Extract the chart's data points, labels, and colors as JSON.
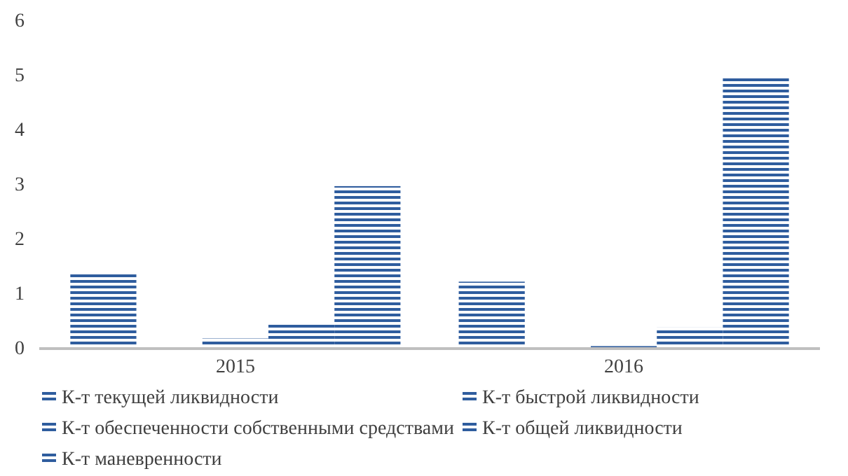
{
  "chart_data": {
    "type": "bar",
    "categories": [
      "2015",
      "2016"
    ],
    "series": [
      {
        "name": "К-т текущей ликвидности",
        "color": "#2f5d9e",
        "values": [
          1.37,
          1.2
        ]
      },
      {
        "name": "К-т быстрой ликвидности",
        "color": "#2f5d9e",
        "values": [
          null,
          null
        ]
      },
      {
        "name": "К-т обеспеченности собственными средствами",
        "color": "#2f5d9e",
        "values": [
          0.16,
          0.02
        ]
      },
      {
        "name": "К-т общей ликвидности",
        "color": "#2f5d9e",
        "values": [
          0.44,
          0.36
        ]
      },
      {
        "name": "К-т маневренности",
        "color": "#2f5d9e",
        "values": [
          2.95,
          4.94
        ]
      }
    ],
    "ylim": [
      0,
      6
    ],
    "yticks": [
      0,
      1,
      2,
      3,
      4,
      5,
      6
    ],
    "grid": false,
    "legend": "bottom"
  }
}
